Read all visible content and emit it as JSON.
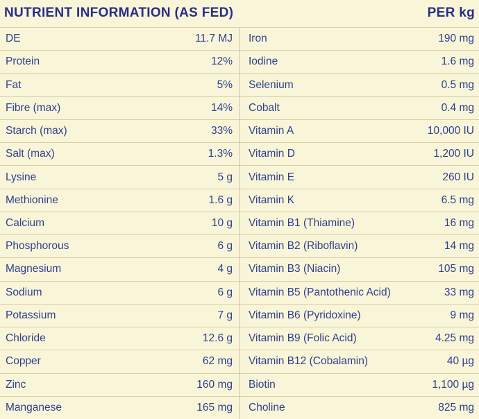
{
  "header": {
    "title": "NUTRIENT INFORMATION (AS FED)",
    "unit": "PER kg"
  },
  "colors": {
    "background": "#f9f5d8",
    "row_text": "#2e3f8e",
    "header_text": "#282d87",
    "row_divider": "#d8cfa6",
    "column_divider": "#c6c0a9"
  },
  "left_rows": [
    {
      "label": "DE",
      "value": "11.7 MJ"
    },
    {
      "label": "Protein",
      "value": "12%"
    },
    {
      "label": "Fat",
      "value": "5%"
    },
    {
      "label": "Fibre (max)",
      "value": "14%"
    },
    {
      "label": "Starch (max)",
      "value": "33%"
    },
    {
      "label": "Salt (max)",
      "value": "1.3%"
    },
    {
      "label": "Lysine",
      "value": "5 g"
    },
    {
      "label": "Methionine",
      "value": "1.6 g"
    },
    {
      "label": "Calcium",
      "value": "10 g"
    },
    {
      "label": "Phosphorous",
      "value": "6 g"
    },
    {
      "label": "Magnesium",
      "value": "4 g"
    },
    {
      "label": "Sodium",
      "value": "6 g"
    },
    {
      "label": "Potassium",
      "value": "7 g"
    },
    {
      "label": "Chloride",
      "value": "12.6 g"
    },
    {
      "label": "Copper",
      "value": "62 mg"
    },
    {
      "label": "Zinc",
      "value": "160 mg"
    },
    {
      "label": "Manganese",
      "value": "165 mg"
    }
  ],
  "right_rows": [
    {
      "label": "Iron",
      "value": "190 mg"
    },
    {
      "label": "Iodine",
      "value": "1.6 mg"
    },
    {
      "label": "Selenium",
      "value": "0.5 mg"
    },
    {
      "label": "Cobalt",
      "value": "0.4 mg"
    },
    {
      "label": "Vitamin A",
      "value": "10,000 IU"
    },
    {
      "label": "Vitamin D",
      "value": "1,200 IU"
    },
    {
      "label": "Vitamin E",
      "value": "260 IU"
    },
    {
      "label": "Vitamin K",
      "value": "6.5 mg"
    },
    {
      "label": "Vitamin B1 (Thiamine)",
      "value": "16 mg"
    },
    {
      "label": "Vitamin B2 (Riboflavin)",
      "value": "14 mg"
    },
    {
      "label": "Vitamin B3 (Niacin)",
      "value": "105 mg"
    },
    {
      "label": "Vitamin B5 (Pantothenic Acid)",
      "value": "33 mg"
    },
    {
      "label": "Vitamin B6 (Pyridoxine)",
      "value": "9 mg"
    },
    {
      "label": "Vitamin B9 (Folic Acid)",
      "value": "4.25 mg"
    },
    {
      "label": "Vitamin B12 (Cobalamin)",
      "value": "40 µg"
    },
    {
      "label": "Biotin",
      "value": "1,100 µg"
    },
    {
      "label": "Choline",
      "value": "825 mg"
    }
  ]
}
